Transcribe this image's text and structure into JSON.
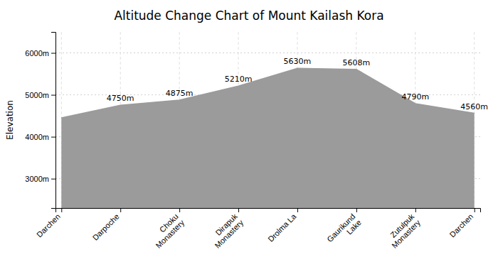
{
  "chart_data": {
    "type": "area",
    "title": "Altitude Change Chart of Mount Kailash Kora",
    "y_label": "Elevation",
    "categories": [
      "Darchen",
      "Darpoche",
      "Choku\nMonastery",
      "Dirapuk\nMonastery",
      "Drolma La",
      "Gaurikund\nLake",
      "Zutulpuk\nMonastery",
      "Darchen"
    ],
    "values": [
      4450,
      4750,
      4875,
      5210,
      5630,
      5608,
      4790,
      4560
    ],
    "value_labels": [
      null,
      "4750m",
      "4875m",
      "5210m",
      "5630m",
      "5608m",
      "4790m",
      "4560m"
    ],
    "data_labels": true,
    "color": "#9b9b9b",
    "ylim": [
      2300,
      6500
    ],
    "yticks": [
      {
        "value": 3000,
        "label": "3000m"
      },
      {
        "value": 4000,
        "label": "4000m"
      },
      {
        "value": 5000,
        "label": "5000m"
      },
      {
        "value": 6000,
        "label": "6000m"
      }
    ],
    "grid": true
  }
}
